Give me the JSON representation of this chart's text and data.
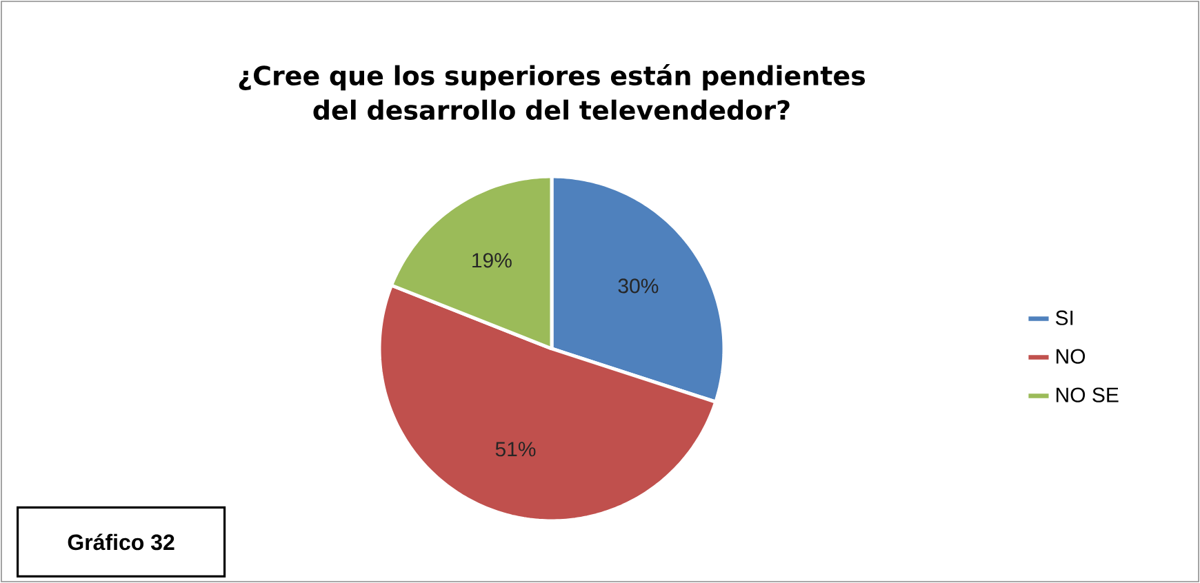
{
  "chart_data": {
    "type": "pie",
    "title": "¿Cree que los superiores están pendientes del desarrollo del televendedor?",
    "categories": [
      "SI",
      "NO",
      "NO SE"
    ],
    "values": [
      30,
      51,
      19
    ],
    "colors": [
      "#4f81bd",
      "#c0504d",
      "#9bbb59"
    ],
    "value_labels": [
      "30%",
      "51%",
      "19%"
    ],
    "legend": "right",
    "annotations": [
      "Gráfico  32"
    ]
  }
}
